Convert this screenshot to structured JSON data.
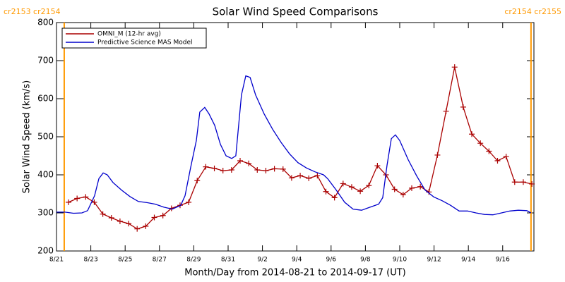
{
  "chart_data": {
    "type": "line",
    "title": "Solar Wind Speed Comparisons",
    "x_label": "Month/Day from 2014-08-21 to 2014-09-17 (UT)",
    "y_label": "Solar Wind Speed (km/s)",
    "xlim": [
      0,
      27.82
    ],
    "xticks": [
      {
        "value": 0,
        "label": "8/21"
      },
      {
        "value": 2,
        "label": "8/23"
      },
      {
        "value": 4,
        "label": "8/25"
      },
      {
        "value": 6,
        "label": "8/27"
      },
      {
        "value": 8,
        "label": "8/29"
      },
      {
        "value": 10,
        "label": "8/31"
      },
      {
        "value": 12,
        "label": "9/2"
      },
      {
        "value": 14,
        "label": "9/4"
      },
      {
        "value": 16,
        "label": "9/6"
      },
      {
        "value": 18,
        "label": "9/8"
      },
      {
        "value": 20,
        "label": "9/10"
      },
      {
        "value": 22,
        "label": "9/12"
      },
      {
        "value": 24,
        "label": "9/14"
      },
      {
        "value": 26,
        "label": "9/16"
      }
    ],
    "ylim": [
      200,
      800
    ],
    "yticks": [
      200,
      300,
      400,
      500,
      600,
      700,
      800
    ],
    "legend": "upper-left",
    "annotations": [
      {
        "text": "cr2153 cr2154",
        "x": 0.45,
        "color": "#ff9900"
      },
      {
        "text": "cr2154 cr2155",
        "x": 27.65,
        "color": "#ff9900"
      }
    ],
    "series": [
      {
        "name": "OMNI_M (12-hr avg)",
        "color": "#aa0000",
        "markers": true,
        "x": [
          0.7,
          1.2,
          1.7,
          2.2,
          2.7,
          3.2,
          3.7,
          4.2,
          4.7,
          5.2,
          5.7,
          6.2,
          6.7,
          7.2,
          7.7,
          8.2,
          8.7,
          9.2,
          9.7,
          10.2,
          10.7,
          11.2,
          11.7,
          12.2,
          12.7,
          13.2,
          13.7,
          14.2,
          14.7,
          15.2,
          15.7,
          16.2,
          16.7,
          17.2,
          17.7,
          18.2,
          18.7,
          19.2,
          19.7,
          20.2,
          20.7,
          21.2,
          21.7,
          22.2,
          22.7,
          23.2,
          23.7,
          24.2,
          24.7,
          25.2,
          25.7,
          26.2,
          26.7,
          27.2,
          27.7
        ],
        "values": [
          328,
          338,
          342,
          328,
          297,
          287,
          278,
          272,
          258,
          265,
          288,
          293,
          312,
          320,
          328,
          385,
          421,
          417,
          411,
          413,
          437,
          430,
          413,
          411,
          416,
          415,
          392,
          398,
          391,
          398,
          356,
          340,
          377,
          368,
          357,
          372,
          424,
          400,
          362,
          348,
          365,
          369,
          355,
          452,
          567,
          683,
          578,
          507,
          483,
          462,
          437,
          448,
          381,
          381,
          376
        ]
      },
      {
        "name": "Predictive Science MAS Model",
        "color": "#0000cc",
        "markers": false,
        "x": [
          0,
          0.49,
          0.99,
          1.48,
          1.81,
          2.22,
          2.47,
          2.72,
          2.96,
          3.29,
          3.79,
          4.28,
          4.77,
          5.27,
          5.76,
          6.26,
          6.75,
          7.24,
          7.49,
          7.82,
          8.15,
          8.35,
          8.64,
          8.89,
          9.22,
          9.55,
          9.88,
          10.21,
          10.45,
          10.78,
          11.03,
          11.28,
          11.6,
          12.1,
          12.59,
          13.09,
          13.58,
          14.07,
          14.57,
          15.06,
          15.56,
          15.8,
          16.3,
          16.79,
          17.28,
          17.78,
          18.27,
          18.77,
          19.01,
          19.26,
          19.51,
          19.75,
          20,
          20.49,
          20.99,
          21.48,
          21.98,
          22.47,
          22.96,
          23.46,
          23.95,
          24.44,
          24.94,
          25.43,
          25.93,
          26.42,
          26.91,
          27.41,
          27.65
        ],
        "values": [
          302,
          302,
          299,
          300,
          306,
          345,
          390,
          405,
          400,
          380,
          360,
          343,
          330,
          327,
          323,
          315,
          310,
          320,
          345,
          420,
          490,
          565,
          577,
          560,
          530,
          480,
          450,
          443,
          450,
          610,
          660,
          656,
          610,
          560,
          520,
          485,
          455,
          432,
          418,
          408,
          400,
          390,
          360,
          328,
          310,
          307,
          315,
          323,
          340,
          425,
          495,
          505,
          490,
          440,
          397,
          360,
          342,
          332,
          320,
          305,
          305,
          300,
          296,
          295,
          300,
          305,
          307,
          306,
          300
        ]
      }
    ]
  }
}
